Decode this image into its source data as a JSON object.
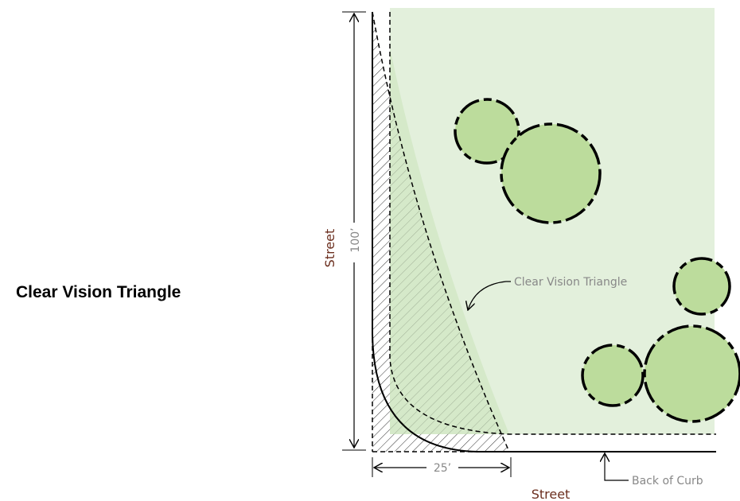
{
  "title": "Clear Vision Triangle",
  "labels": {
    "street_left": "Street",
    "dimension_vertical": "100’",
    "triangle_callout": "Clear Vision Triangle",
    "dimension_horizontal": "25’",
    "street_bottom": "Street",
    "curb_callout": "Back of Curb"
  }
}
